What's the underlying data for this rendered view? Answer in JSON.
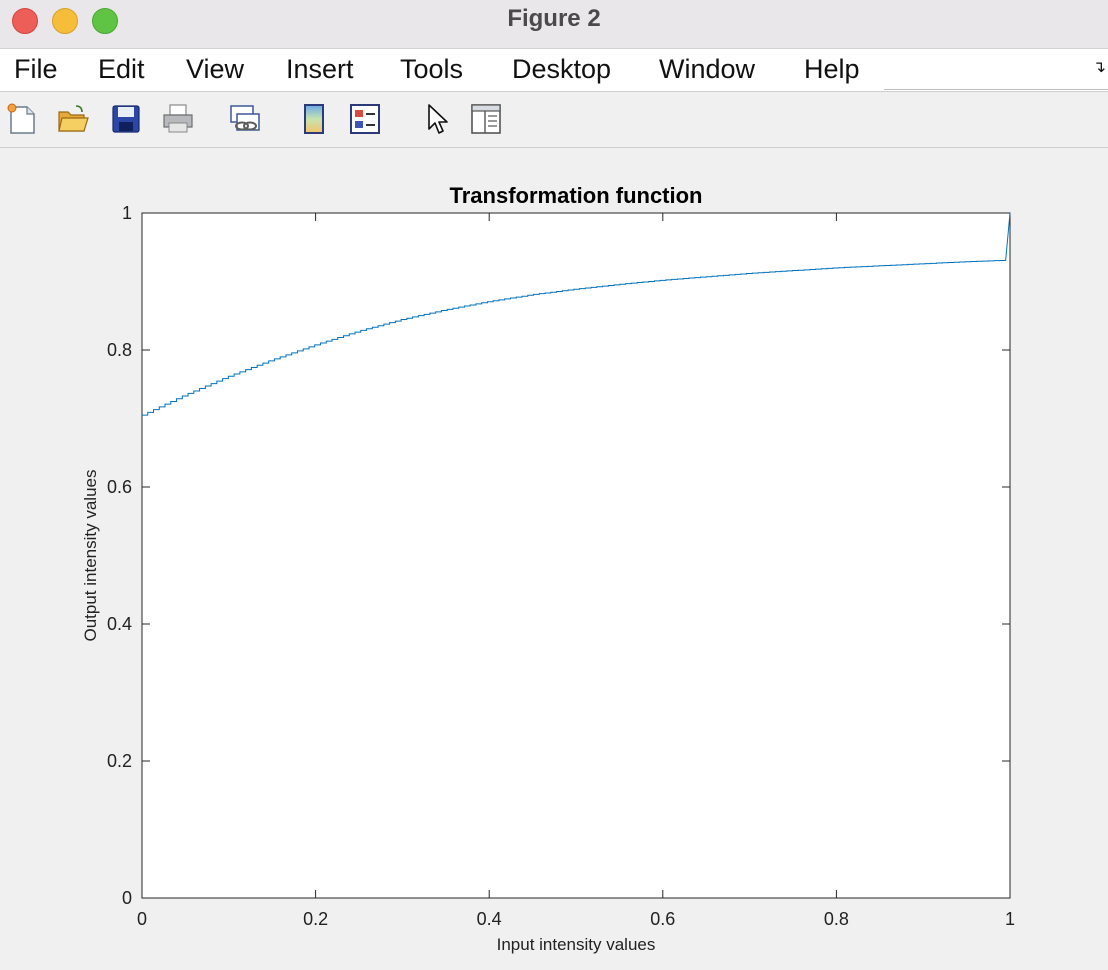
{
  "window": {
    "title": "Figure 2"
  },
  "menu": {
    "items": [
      "File",
      "Edit",
      "View",
      "Insert",
      "Tools",
      "Desktop",
      "Window",
      "Help"
    ]
  },
  "toolbar": {
    "icons": [
      "new-figure-icon",
      "open-file-icon",
      "save-icon",
      "print-icon",
      "link-plot-icon",
      "colorbar-icon",
      "legend-icon",
      "edit-plot-pointer-icon",
      "property-inspector-icon"
    ]
  },
  "colors": {
    "line": "#0072bd",
    "plot_background": "#ffffff",
    "figure_background": "#f0f0f0"
  },
  "chart_data": {
    "type": "line",
    "title": "Transformation function",
    "xlabel": "Input intensity values",
    "ylabel": "Output intensity values",
    "xlim": [
      0,
      1
    ],
    "ylim": [
      0,
      1
    ],
    "xticks": [
      "0",
      "0.2",
      "0.4",
      "0.6",
      "0.8",
      "1"
    ],
    "yticks": [
      "0",
      "0.2",
      "0.4",
      "0.6",
      "0.8",
      "1"
    ],
    "grid": false,
    "series": [
      {
        "x": [
          0,
          0.05,
          0.1,
          0.15,
          0.2,
          0.25,
          0.3,
          0.35,
          0.4,
          0.45,
          0.5,
          0.55,
          0.6,
          0.65,
          0.7,
          0.75,
          0.8,
          0.85,
          0.9,
          0.95,
          0.995,
          1.0
        ],
        "y": [
          0.705,
          0.735,
          0.762,
          0.786,
          0.808,
          0.828,
          0.845,
          0.859,
          0.871,
          0.881,
          0.889,
          0.896,
          0.902,
          0.907,
          0.912,
          0.916,
          0.92,
          0.923,
          0.926,
          0.929,
          0.931,
          1.0
        ]
      }
    ]
  }
}
